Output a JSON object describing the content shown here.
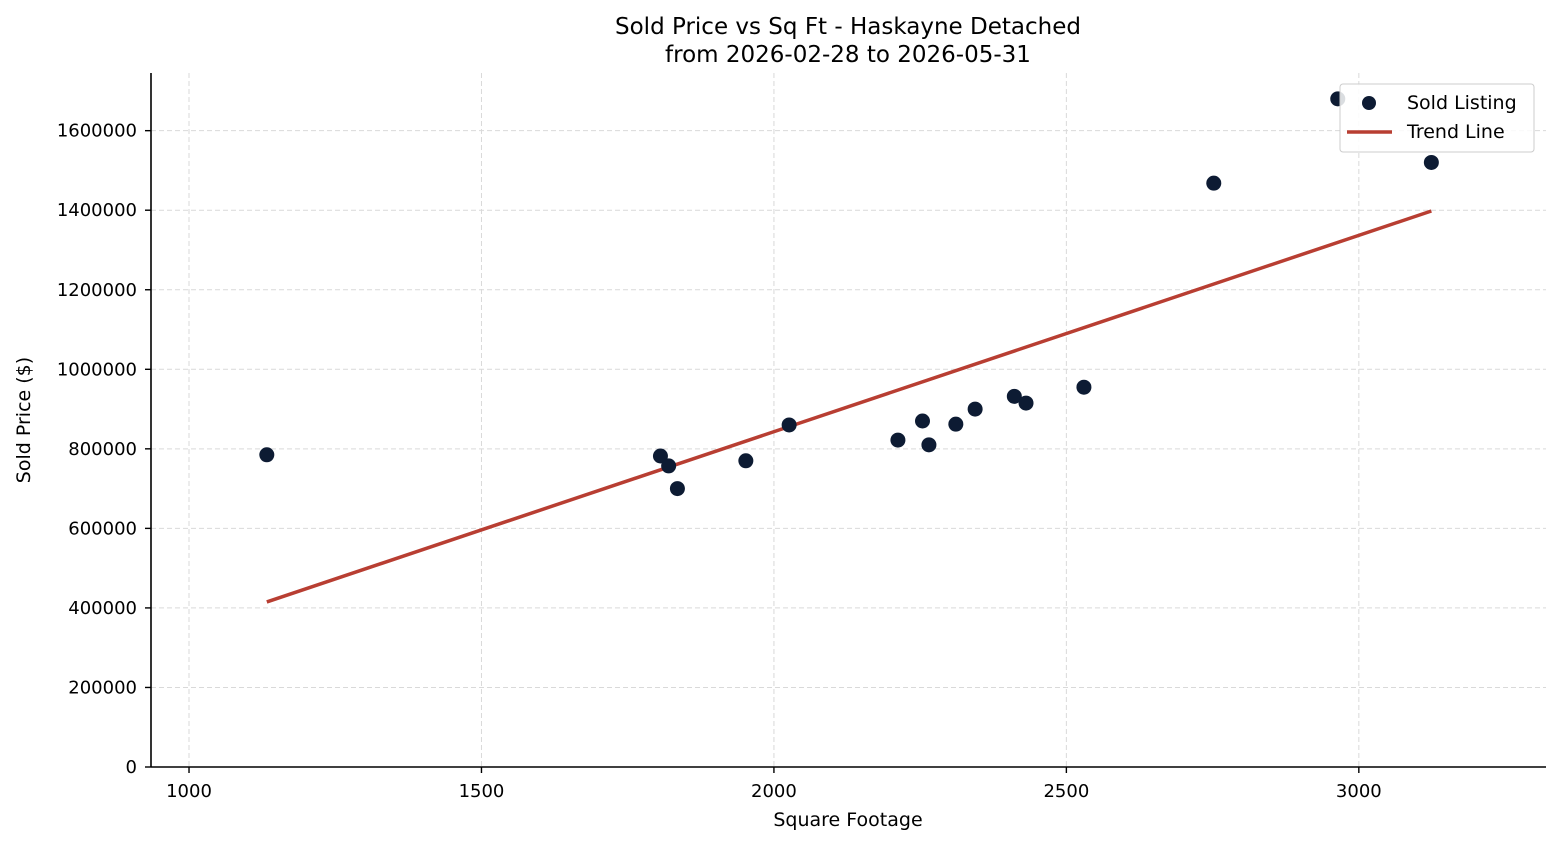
{
  "chart_data": {
    "type": "scatter",
    "title_line1": "Sold Price vs Sq Ft - Haskayne Detached",
    "title_line2": "from 2026-02-28 to 2026-05-31",
    "xlabel": "Square Footage",
    "ylabel": "Sold Price ($)",
    "xlim": [
      935,
      3320
    ],
    "ylim": [
      0,
      1745000
    ],
    "x_ticks": [
      1000,
      1500,
      2000,
      2500,
      3000
    ],
    "y_ticks": [
      0,
      200000,
      400000,
      600000,
      800000,
      1000000,
      1200000,
      1400000,
      1600000
    ],
    "grid": true,
    "legend_position": "top-right",
    "series": [
      {
        "name": "Sold Listing",
        "kind": "scatter",
        "color": "#0d1b33",
        "points": [
          {
            "x": 1133,
            "y": 785000
          },
          {
            "x": 1806,
            "y": 782000
          },
          {
            "x": 1820,
            "y": 757000
          },
          {
            "x": 1835,
            "y": 700000
          },
          {
            "x": 1952,
            "y": 770000
          },
          {
            "x": 2026,
            "y": 860000
          },
          {
            "x": 2212,
            "y": 822000
          },
          {
            "x": 2254,
            "y": 870000
          },
          {
            "x": 2265,
            "y": 810000
          },
          {
            "x": 2311,
            "y": 862000
          },
          {
            "x": 2344,
            "y": 900000
          },
          {
            "x": 2411,
            "y": 932000
          },
          {
            "x": 2431,
            "y": 915000
          },
          {
            "x": 2530,
            "y": 955000
          },
          {
            "x": 2752,
            "y": 1468000
          },
          {
            "x": 2964,
            "y": 1680000
          },
          {
            "x": 3124,
            "y": 1520000
          }
        ]
      },
      {
        "name": "Trend Line",
        "kind": "line",
        "color": "#b83e32",
        "points": [
          {
            "x": 1133,
            "y": 415000
          },
          {
            "x": 3124,
            "y": 1398000
          }
        ]
      }
    ]
  }
}
